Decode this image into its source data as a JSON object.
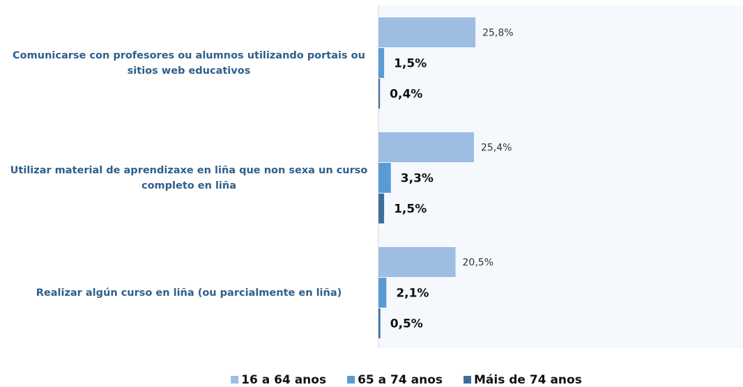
{
  "chart_data": {
    "type": "bar",
    "orientation": "horizontal",
    "categories": [
      "Comunicarse con profesores ou alumnos utilizando portais ou sitios web educativos",
      "Utilizar material de aprendizaxe en liña que non sexa un curso completo en liña",
      "Realizar algún curso en liña (ou parcialmente en liña)"
    ],
    "series": [
      {
        "name": "16 a 64 anos",
        "color": "#9dbde3",
        "values": [
          25.8,
          25.4,
          20.5
        ],
        "value_labels": [
          "25,8%",
          "25,4%",
          "20,5%"
        ]
      },
      {
        "name": "65 a 74 anos",
        "color": "#5b9bd5",
        "values": [
          1.5,
          3.3,
          2.1
        ],
        "value_labels": [
          "1,5%",
          "3,3%",
          "2,1%"
        ]
      },
      {
        "name": "Máis de 74 anos",
        "color": "#3f6e9c",
        "values": [
          0.4,
          1.5,
          0.5
        ],
        "value_labels": [
          "0,4%",
          "1,5%",
          "0,5%"
        ]
      }
    ],
    "xlim": [
      0,
      97
    ],
    "legend": "bottom"
  }
}
